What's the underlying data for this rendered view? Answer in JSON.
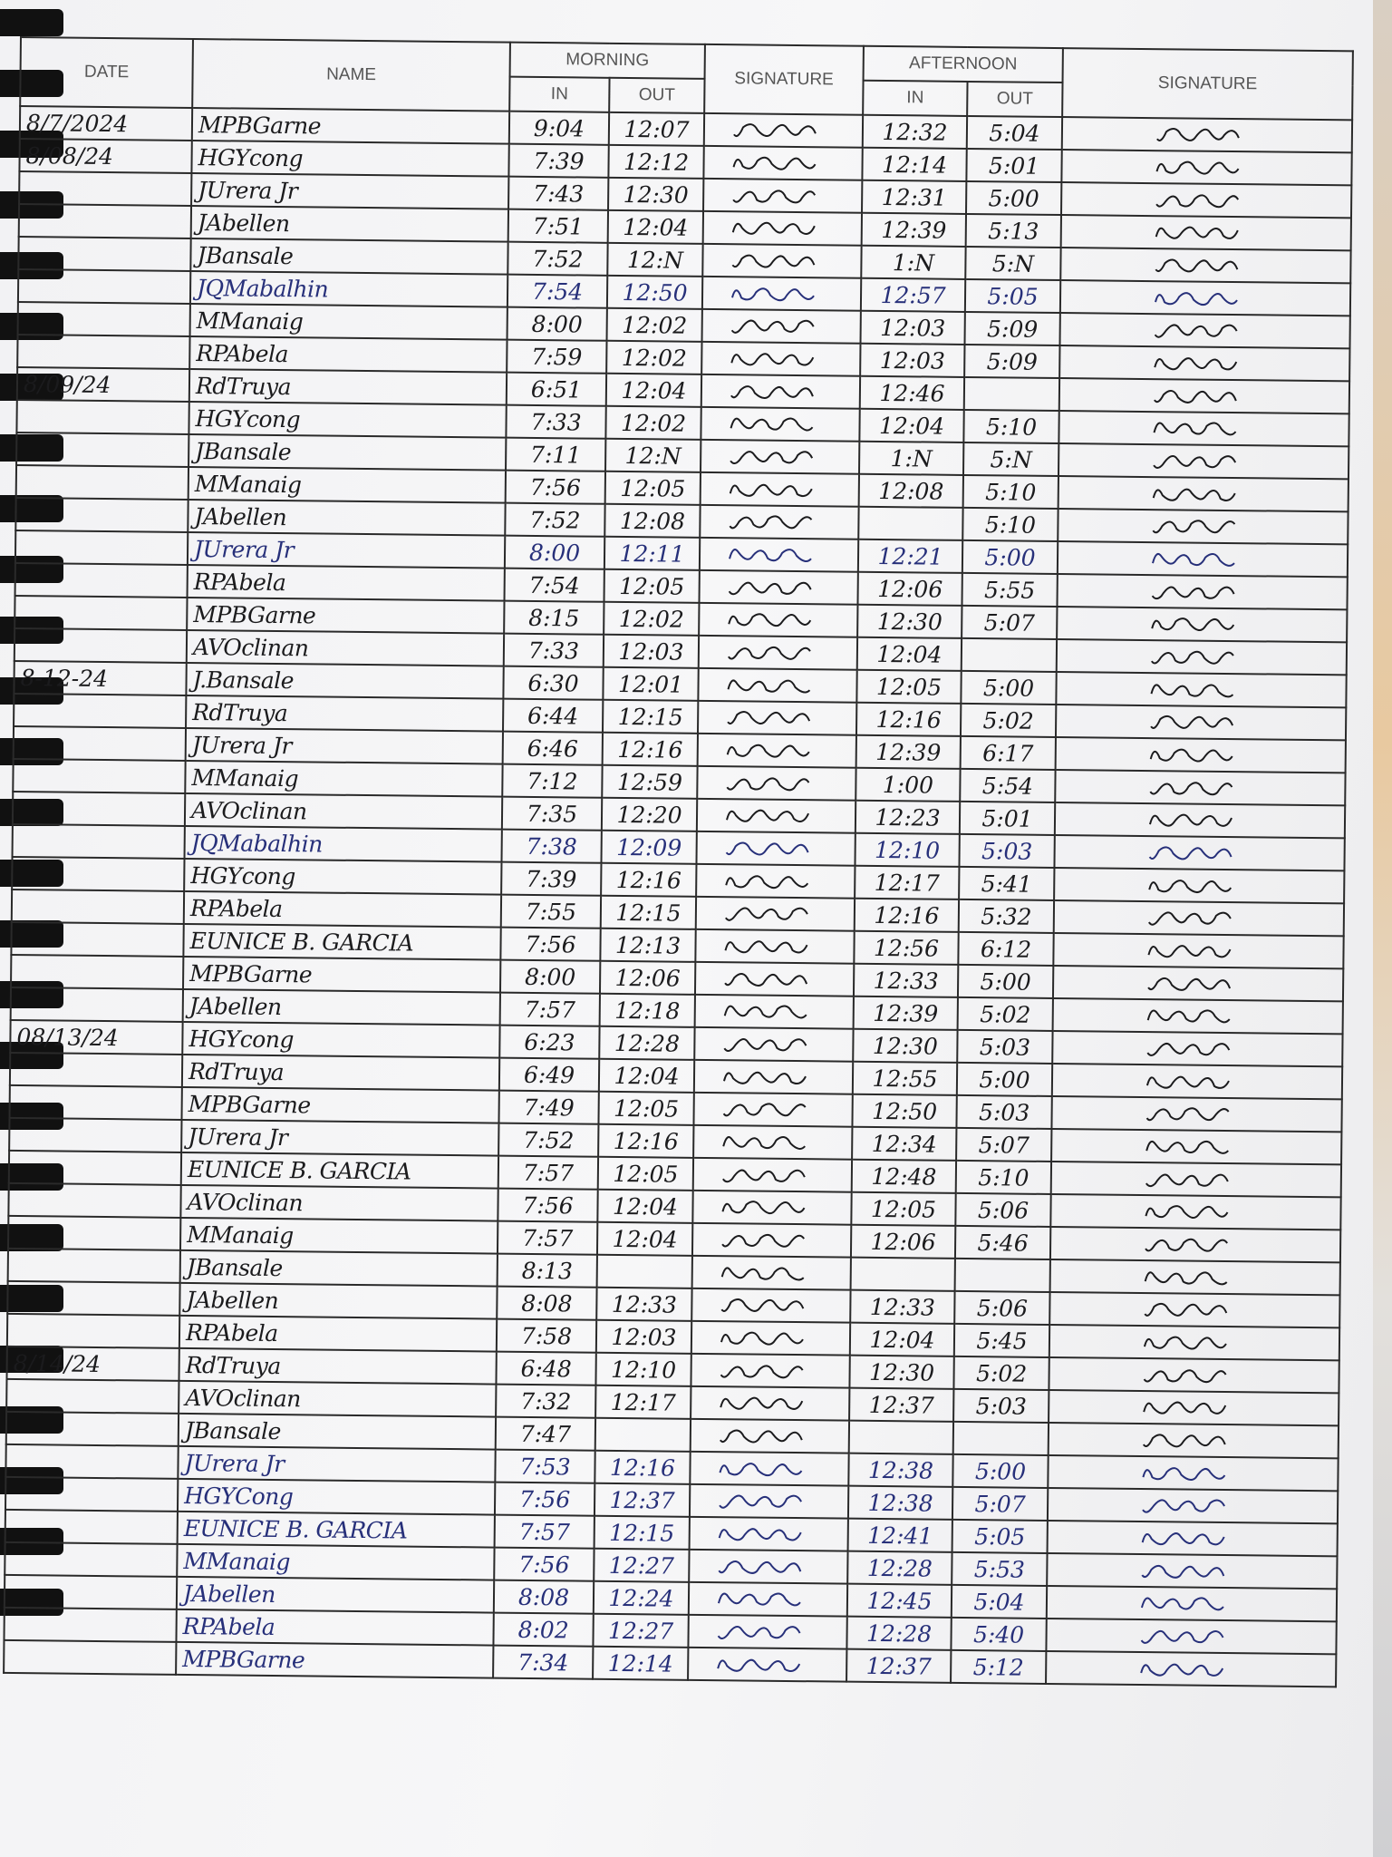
{
  "header": {
    "date": "DATE",
    "name": "NAME",
    "morning": "MORNING",
    "afternoon": "AFTERNOON",
    "in": "IN",
    "out": "OUT",
    "signature": "SIGNATURE"
  },
  "ink_colors": {
    "black": "#1b1b1d",
    "blue": "#27307a"
  },
  "rows": [
    {
      "date": "8/7/2024",
      "name": "MPBGarne",
      "am_in": "9:04",
      "am_out": "12:07",
      "pm_in": "12:32",
      "pm_out": "5:04",
      "ink": "black"
    },
    {
      "date": "8/08/24",
      "name": "HGYcong",
      "am_in": "7:39",
      "am_out": "12:12",
      "pm_in": "12:14",
      "pm_out": "5:01",
      "ink": "black"
    },
    {
      "date": "",
      "name": "JUrera Jr",
      "am_in": "7:43",
      "am_out": "12:30",
      "pm_in": "12:31",
      "pm_out": "5:00",
      "ink": "black"
    },
    {
      "date": "",
      "name": "JAbellen",
      "am_in": "7:51",
      "am_out": "12:04",
      "pm_in": "12:39",
      "pm_out": "5:13",
      "ink": "black"
    },
    {
      "date": "",
      "name": "JBansale",
      "am_in": "7:52",
      "am_out": "12:N",
      "pm_in": "1:N",
      "pm_out": "5:N",
      "ink": "black"
    },
    {
      "date": "",
      "name": "JQMabalhin",
      "am_in": "7:54",
      "am_out": "12:50",
      "pm_in": "12:57",
      "pm_out": "5:05",
      "ink": "blue"
    },
    {
      "date": "",
      "name": "MManaig",
      "am_in": "8:00",
      "am_out": "12:02",
      "pm_in": "12:03",
      "pm_out": "5:09",
      "ink": "black"
    },
    {
      "date": "",
      "name": "RPAbela",
      "am_in": "7:59",
      "am_out": "12:02",
      "pm_in": "12:03",
      "pm_out": "5:09",
      "ink": "black"
    },
    {
      "date": "8/09/24",
      "name": "RdTruya",
      "am_in": "6:51",
      "am_out": "12:04",
      "pm_in": "12:46",
      "pm_out": "",
      "ink": "black"
    },
    {
      "date": "",
      "name": "HGYcong",
      "am_in": "7:33",
      "am_out": "12:02",
      "pm_in": "12:04",
      "pm_out": "5:10",
      "ink": "black"
    },
    {
      "date": "",
      "name": "JBansale",
      "am_in": "7:11",
      "am_out": "12:N",
      "pm_in": "1:N",
      "pm_out": "5:N",
      "ink": "black"
    },
    {
      "date": "",
      "name": "MManaig",
      "am_in": "7:56",
      "am_out": "12:05",
      "pm_in": "12:08",
      "pm_out": "5:10",
      "ink": "black"
    },
    {
      "date": "",
      "name": "JAbellen",
      "am_in": "7:52",
      "am_out": "12:08",
      "pm_in": "",
      "pm_out": "5:10",
      "ink": "black"
    },
    {
      "date": "",
      "name": "JUrera Jr",
      "am_in": "8:00",
      "am_out": "12:11",
      "pm_in": "12:21",
      "pm_out": "5:00",
      "ink": "blue"
    },
    {
      "date": "",
      "name": "RPAbela",
      "am_in": "7:54",
      "am_out": "12:05",
      "pm_in": "12:06",
      "pm_out": "5:55",
      "ink": "black"
    },
    {
      "date": "",
      "name": "MPBGarne",
      "am_in": "8:15",
      "am_out": "12:02",
      "pm_in": "12:30",
      "pm_out": "5:07",
      "ink": "black"
    },
    {
      "date": "",
      "name": "AVOclinan",
      "am_in": "7:33",
      "am_out": "12:03",
      "pm_in": "12:04",
      "pm_out": "",
      "ink": "black"
    },
    {
      "date": "8-12-24",
      "name": "J.Bansale",
      "am_in": "6:30",
      "am_out": "12:01",
      "pm_in": "12:05",
      "pm_out": "5:00",
      "ink": "black"
    },
    {
      "date": "",
      "name": "RdTruya",
      "am_in": "6:44",
      "am_out": "12:15",
      "pm_in": "12:16",
      "pm_out": "5:02",
      "ink": "black"
    },
    {
      "date": "",
      "name": "JUrera Jr",
      "am_in": "6:46",
      "am_out": "12:16",
      "pm_in": "12:39",
      "pm_out": "6:17",
      "ink": "black"
    },
    {
      "date": "",
      "name": "MManaig",
      "am_in": "7:12",
      "am_out": "12:59",
      "pm_in": "1:00",
      "pm_out": "5:54",
      "ink": "black"
    },
    {
      "date": "",
      "name": "AVOclinan",
      "am_in": "7:35",
      "am_out": "12:20",
      "pm_in": "12:23",
      "pm_out": "5:01",
      "ink": "black"
    },
    {
      "date": "",
      "name": "JQMabalhin",
      "am_in": "7:38",
      "am_out": "12:09",
      "pm_in": "12:10",
      "pm_out": "5:03",
      "ink": "blue"
    },
    {
      "date": "",
      "name": "HGYcong",
      "am_in": "7:39",
      "am_out": "12:16",
      "pm_in": "12:17",
      "pm_out": "5:41",
      "ink": "black"
    },
    {
      "date": "",
      "name": "RPAbela",
      "am_in": "7:55",
      "am_out": "12:15",
      "pm_in": "12:16",
      "pm_out": "5:32",
      "ink": "black"
    },
    {
      "date": "",
      "name": "EUNICE B. GARCIA",
      "am_in": "7:56",
      "am_out": "12:13",
      "pm_in": "12:56",
      "pm_out": "6:12",
      "ink": "black"
    },
    {
      "date": "",
      "name": "MPBGarne",
      "am_in": "8:00",
      "am_out": "12:06",
      "pm_in": "12:33",
      "pm_out": "5:00",
      "ink": "black"
    },
    {
      "date": "",
      "name": "JAbellen",
      "am_in": "7:57",
      "am_out": "12:18",
      "pm_in": "12:39",
      "pm_out": "5:02",
      "ink": "black"
    },
    {
      "date": "08/13/24",
      "name": "HGYcong",
      "am_in": "6:23",
      "am_out": "12:28",
      "pm_in": "12:30",
      "pm_out": "5:03",
      "ink": "black"
    },
    {
      "date": "",
      "name": "RdTruya",
      "am_in": "6:49",
      "am_out": "12:04",
      "pm_in": "12:55",
      "pm_out": "5:00",
      "ink": "black"
    },
    {
      "date": "",
      "name": "MPBGarne",
      "am_in": "7:49",
      "am_out": "12:05",
      "pm_in": "12:50",
      "pm_out": "5:03",
      "ink": "black"
    },
    {
      "date": "",
      "name": "JUrera Jr",
      "am_in": "7:52",
      "am_out": "12:16",
      "pm_in": "12:34",
      "pm_out": "5:07",
      "ink": "black"
    },
    {
      "date": "",
      "name": "EUNICE B. GARCIA",
      "am_in": "7:57",
      "am_out": "12:05",
      "pm_in": "12:48",
      "pm_out": "5:10",
      "ink": "black"
    },
    {
      "date": "",
      "name": "AVOclinan",
      "am_in": "7:56",
      "am_out": "12:04",
      "pm_in": "12:05",
      "pm_out": "5:06",
      "ink": "black"
    },
    {
      "date": "",
      "name": "MManaig",
      "am_in": "7:57",
      "am_out": "12:04",
      "pm_in": "12:06",
      "pm_out": "5:46",
      "ink": "black"
    },
    {
      "date": "",
      "name": "JBansale",
      "am_in": "8:13",
      "am_out": "",
      "pm_in": "",
      "pm_out": "",
      "ink": "black"
    },
    {
      "date": "",
      "name": "JAbellen",
      "am_in": "8:08",
      "am_out": "12:33",
      "pm_in": "12:33",
      "pm_out": "5:06",
      "ink": "black"
    },
    {
      "date": "",
      "name": "RPAbela",
      "am_in": "7:58",
      "am_out": "12:03",
      "pm_in": "12:04",
      "pm_out": "5:45",
      "ink": "black"
    },
    {
      "date": "8/14/24",
      "name": "RdTruya",
      "am_in": "6:48",
      "am_out": "12:10",
      "pm_in": "12:30",
      "pm_out": "5:02",
      "ink": "black"
    },
    {
      "date": "",
      "name": "AVOclinan",
      "am_in": "7:32",
      "am_out": "12:17",
      "pm_in": "12:37",
      "pm_out": "5:03",
      "ink": "black"
    },
    {
      "date": "",
      "name": "JBansale",
      "am_in": "7:47",
      "am_out": "",
      "pm_in": "",
      "pm_out": "",
      "ink": "black"
    },
    {
      "date": "",
      "name": "JUrera Jr",
      "am_in": "7:53",
      "am_out": "12:16",
      "pm_in": "12:38",
      "pm_out": "5:00",
      "ink": "blue"
    },
    {
      "date": "",
      "name": "HGYCong",
      "am_in": "7:56",
      "am_out": "12:37",
      "pm_in": "12:38",
      "pm_out": "5:07",
      "ink": "blue"
    },
    {
      "date": "",
      "name": "EUNICE B. GARCIA",
      "am_in": "7:57",
      "am_out": "12:15",
      "pm_in": "12:41",
      "pm_out": "5:05",
      "ink": "blue"
    },
    {
      "date": "",
      "name": "MManaig",
      "am_in": "7:56",
      "am_out": "12:27",
      "pm_in": "12:28",
      "pm_out": "5:53",
      "ink": "blue"
    },
    {
      "date": "",
      "name": "JAbellen",
      "am_in": "8:08",
      "am_out": "12:24",
      "pm_in": "12:45",
      "pm_out": "5:04",
      "ink": "blue"
    },
    {
      "date": "",
      "name": "RPAbela",
      "am_in": "8:02",
      "am_out": "12:27",
      "pm_in": "12:28",
      "pm_out": "5:40",
      "ink": "blue"
    },
    {
      "date": "",
      "name": "MPBGarne",
      "am_in": "7:34",
      "am_out": "12:14",
      "pm_in": "12:37",
      "pm_out": "5:12",
      "ink": "blue"
    }
  ]
}
